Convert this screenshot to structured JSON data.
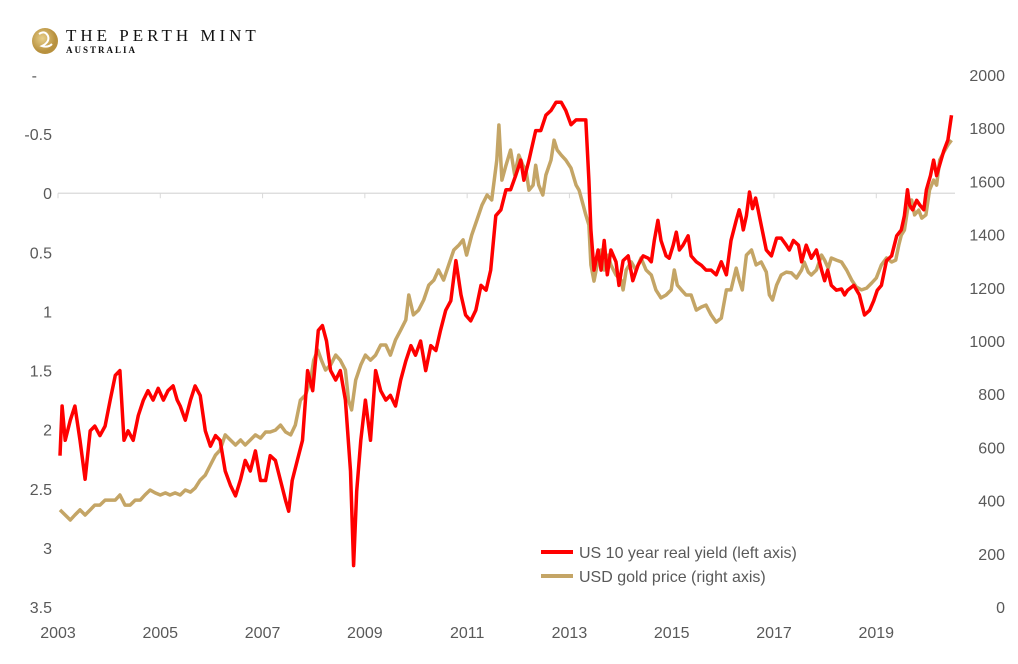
{
  "logo": {
    "name": "THE PERTH MINT",
    "sub": "AUSTRALIA"
  },
  "colors": {
    "yield": "#ff0000",
    "gold": "#c4a566",
    "grid": "#d9d9d9",
    "text": "#595959"
  },
  "chart_data": {
    "type": "line",
    "title": "",
    "x_ticks": [
      "2003",
      "2005",
      "2007",
      "2009",
      "2011",
      "2013",
      "2015",
      "2017",
      "2019"
    ],
    "xlim": [
      2003,
      2020.5
    ],
    "left_axis": {
      "ticks": [
        "-",
        "-0.5",
        "0",
        "0.5",
        "1",
        "1.5",
        "2",
        "2.5",
        "3",
        "3.5"
      ],
      "tick_values": [
        -1,
        -0.5,
        0,
        0.5,
        1,
        1.5,
        2,
        2.5,
        3,
        3.5
      ],
      "range": [
        -1,
        3.5
      ],
      "inverted": true
    },
    "right_axis": {
      "ticks": [
        "2000",
        "1800",
        "1600",
        "1400",
        "1200",
        "1000",
        "800",
        "600",
        "400",
        "200",
        "0"
      ],
      "tick_values": [
        2000,
        1800,
        1600,
        1400,
        1200,
        1000,
        800,
        600,
        400,
        200,
        0
      ],
      "range": [
        0,
        2000
      ]
    },
    "gridlines": "zero line only",
    "legend_position": "bottom-right",
    "series": [
      {
        "name": "US 10 year real yield (left axis)",
        "axis": "left",
        "color": "#ff0000",
        "x": [
          2003.04,
          2003.08,
          2003.14,
          2003.24,
          2003.33,
          2003.43,
          2003.53,
          2003.63,
          2003.72,
          2003.82,
          2003.92,
          2004.02,
          2004.12,
          2004.21,
          2004.29,
          2004.37,
          2004.47,
          2004.57,
          2004.67,
          2004.76,
          2004.86,
          2004.96,
          2005.06,
          2005.15,
          2005.25,
          2005.33,
          2005.39,
          2005.49,
          2005.59,
          2005.68,
          2005.78,
          2005.88,
          2005.98,
          2006.08,
          2006.17,
          2006.27,
          2006.37,
          2006.47,
          2006.57,
          2006.66,
          2006.76,
          2006.86,
          2006.96,
          2007.06,
          2007.15,
          2007.25,
          2007.35,
          2007.45,
          2007.51,
          2007.58,
          2007.68,
          2007.78,
          2007.88,
          2007.98,
          2008.09,
          2008.17,
          2008.25,
          2008.33,
          2008.43,
          2008.52,
          2008.62,
          2008.72,
          2008.78,
          2008.84,
          2008.92,
          2009.01,
          2009.11,
          2009.21,
          2009.31,
          2009.41,
          2009.5,
          2009.6,
          2009.7,
          2009.8,
          2009.9,
          2009.99,
          2010.09,
          2010.19,
          2010.29,
          2010.39,
          2010.48,
          2010.58,
          2010.68,
          2010.78,
          2010.88,
          2010.97,
          2011.07,
          2011.17,
          2011.27,
          2011.37,
          2011.46,
          2011.56,
          2011.66,
          2011.76,
          2011.85,
          2011.95,
          2012.05,
          2012.11,
          2012.21,
          2012.25,
          2012.34,
          2012.44,
          2012.54,
          2012.64,
          2012.74,
          2012.84,
          2012.93,
          2013.03,
          2013.13,
          2013.23,
          2013.32,
          2013.38,
          2013.42,
          2013.48,
          2013.56,
          2013.62,
          2013.68,
          2013.74,
          2013.81,
          2013.91,
          2013.97,
          2014.05,
          2014.15,
          2014.24,
          2014.34,
          2014.44,
          2014.54,
          2014.6,
          2014.66,
          2014.73,
          2014.79,
          2014.89,
          2014.95,
          2015.03,
          2015.09,
          2015.15,
          2015.22,
          2015.32,
          2015.38,
          2015.48,
          2015.58,
          2015.67,
          2015.77,
          2015.87,
          2015.97,
          2016.07,
          2016.16,
          2016.26,
          2016.32,
          2016.36,
          2016.4,
          2016.46,
          2016.52,
          2016.58,
          2016.64,
          2016.69,
          2016.75,
          2016.85,
          2016.95,
          2017.05,
          2017.14,
          2017.24,
          2017.3,
          2017.38,
          2017.48,
          2017.54,
          2017.63,
          2017.73,
          2017.83,
          2017.93,
          2017.99,
          2018.05,
          2018.12,
          2018.22,
          2018.32,
          2018.38,
          2018.44,
          2018.56,
          2018.67,
          2018.77,
          2018.87,
          2018.95,
          2019.02,
          2019.1,
          2019.2,
          2019.3,
          2019.4,
          2019.49,
          2019.55,
          2019.61,
          2019.65,
          2019.71,
          2019.79,
          2019.85,
          2019.93,
          2019.98,
          2020.06,
          2020.12,
          2020.18,
          2020.24,
          2020.32,
          2020.4,
          2020.47
        ],
        "y": [
          2.22,
          1.8,
          2.09,
          1.92,
          1.8,
          2.09,
          2.42,
          2.01,
          1.97,
          2.05,
          1.97,
          1.75,
          1.54,
          1.5,
          2.09,
          2.01,
          2.09,
          1.88,
          1.75,
          1.67,
          1.75,
          1.65,
          1.75,
          1.67,
          1.63,
          1.75,
          1.8,
          1.92,
          1.75,
          1.63,
          1.71,
          2.01,
          2.14,
          2.05,
          2.09,
          2.35,
          2.47,
          2.56,
          2.42,
          2.26,
          2.35,
          2.18,
          2.43,
          2.43,
          2.22,
          2.26,
          2.43,
          2.6,
          2.69,
          2.43,
          2.26,
          2.09,
          1.5,
          1.67,
          1.16,
          1.12,
          1.25,
          1.5,
          1.58,
          1.5,
          1.75,
          2.35,
          3.15,
          2.52,
          2.09,
          1.75,
          2.09,
          1.5,
          1.67,
          1.75,
          1.71,
          1.8,
          1.58,
          1.42,
          1.29,
          1.37,
          1.25,
          1.5,
          1.29,
          1.33,
          1.16,
          0.99,
          0.91,
          0.57,
          0.86,
          1.03,
          1.08,
          0.99,
          0.78,
          0.82,
          0.65,
          0.19,
          0.14,
          -0.03,
          -0.03,
          -0.15,
          -0.28,
          -0.11,
          -0.28,
          -0.36,
          -0.53,
          -0.53,
          -0.66,
          -0.7,
          -0.77,
          -0.77,
          -0.7,
          -0.58,
          -0.62,
          -0.62,
          -0.62,
          -0.11,
          0.31,
          0.65,
          0.48,
          0.65,
          0.4,
          0.69,
          0.48,
          0.58,
          0.78,
          0.57,
          0.53,
          0.74,
          0.61,
          0.53,
          0.55,
          0.58,
          0.4,
          0.23,
          0.4,
          0.53,
          0.55,
          0.44,
          0.33,
          0.48,
          0.44,
          0.36,
          0.53,
          0.58,
          0.61,
          0.65,
          0.65,
          0.69,
          0.58,
          0.69,
          0.4,
          0.23,
          0.14,
          0.21,
          0.31,
          0.19,
          -0.01,
          0.13,
          0.04,
          0.14,
          0.27,
          0.48,
          0.53,
          0.38,
          0.38,
          0.44,
          0.48,
          0.4,
          0.44,
          0.58,
          0.44,
          0.55,
          0.48,
          0.65,
          0.74,
          0.65,
          0.78,
          0.82,
          0.81,
          0.86,
          0.82,
          0.78,
          0.86,
          1.03,
          0.99,
          0.91,
          0.82,
          0.78,
          0.57,
          0.53,
          0.36,
          0.31,
          0.19,
          -0.03,
          0.1,
          0.14,
          0.06,
          0.1,
          0.14,
          -0.03,
          -0.15,
          -0.28,
          -0.15,
          -0.24,
          -0.36,
          -0.45,
          -0.66
        ]
      },
      {
        "name": "USD gold price (right axis)",
        "axis": "right",
        "color": "#c4a566",
        "x": [
          2003.04,
          2003.14,
          2003.24,
          2003.33,
          2003.43,
          2003.53,
          2003.63,
          2003.72,
          2003.82,
          2003.92,
          2004.02,
          2004.12,
          2004.21,
          2004.31,
          2004.41,
          2004.51,
          2004.61,
          2004.7,
          2004.8,
          2004.9,
          2005.0,
          2005.1,
          2005.19,
          2005.29,
          2005.39,
          2005.49,
          2005.59,
          2005.68,
          2005.78,
          2005.88,
          2005.98,
          2006.08,
          2006.17,
          2006.27,
          2006.37,
          2006.47,
          2006.57,
          2006.66,
          2006.76,
          2006.86,
          2006.96,
          2007.06,
          2007.15,
          2007.25,
          2007.35,
          2007.45,
          2007.55,
          2007.64,
          2007.74,
          2007.84,
          2007.94,
          2008.0,
          2008.08,
          2008.15,
          2008.23,
          2008.33,
          2008.43,
          2008.52,
          2008.62,
          2008.68,
          2008.74,
          2008.82,
          2008.92,
          2009.01,
          2009.11,
          2009.21,
          2009.31,
          2009.41,
          2009.5,
          2009.6,
          2009.7,
          2009.8,
          2009.86,
          2009.95,
          2010.05,
          2010.15,
          2010.25,
          2010.35,
          2010.44,
          2010.54,
          2010.64,
          2010.74,
          2010.84,
          2010.92,
          2010.99,
          2011.09,
          2011.19,
          2011.29,
          2011.39,
          2011.48,
          2011.58,
          2011.62,
          2011.68,
          2011.76,
          2011.85,
          2011.93,
          2012.01,
          2012.09,
          2012.15,
          2012.21,
          2012.29,
          2012.34,
          2012.4,
          2012.48,
          2012.54,
          2012.64,
          2012.7,
          2012.76,
          2012.84,
          2012.93,
          2013.03,
          2013.13,
          2013.19,
          2013.27,
          2013.32,
          2013.38,
          2013.42,
          2013.48,
          2013.56,
          2013.62,
          2013.68,
          2013.76,
          2013.81,
          2013.91,
          2014.01,
          2014.05,
          2014.11,
          2014.21,
          2014.3,
          2014.4,
          2014.5,
          2014.6,
          2014.69,
          2014.79,
          2014.89,
          2014.99,
          2015.05,
          2015.11,
          2015.19,
          2015.28,
          2015.38,
          2015.48,
          2015.58,
          2015.67,
          2015.77,
          2015.87,
          2015.97,
          2016.07,
          2016.16,
          2016.26,
          2016.32,
          2016.38,
          2016.46,
          2016.56,
          2016.65,
          2016.75,
          2016.85,
          2016.91,
          2016.97,
          2017.05,
          2017.14,
          2017.24,
          2017.34,
          2017.44,
          2017.54,
          2017.59,
          2017.67,
          2017.73,
          2017.83,
          2017.93,
          2017.99,
          2018.06,
          2018.12,
          2018.22,
          2018.32,
          2018.42,
          2018.52,
          2018.61,
          2018.71,
          2018.81,
          2018.91,
          2019.0,
          2019.1,
          2019.2,
          2019.3,
          2019.38,
          2019.44,
          2019.49,
          2019.55,
          2019.61,
          2019.69,
          2019.75,
          2019.83,
          2019.89,
          2019.97,
          2020.04,
          2020.12,
          2020.18,
          2020.24,
          2020.32,
          2020.4,
          2020.47
        ],
        "y": [
          365,
          346,
          327,
          346,
          365,
          346,
          365,
          383,
          383,
          402,
          402,
          402,
          421,
          383,
          383,
          402,
          402,
          421,
          440,
          429,
          421,
          429,
          421,
          429,
          421,
          440,
          432,
          447,
          477,
          496,
          534,
          571,
          590,
          647,
          628,
          609,
          628,
          609,
          628,
          647,
          635,
          658,
          658,
          665,
          684,
          658,
          647,
          684,
          778,
          797,
          853,
          928,
          966,
          928,
          891,
          910,
          947,
          928,
          891,
          778,
          741,
          853,
          910,
          947,
          928,
          947,
          985,
          985,
          947,
          1004,
          1041,
          1079,
          1173,
          1098,
          1116,
          1154,
          1210,
          1229,
          1267,
          1229,
          1286,
          1342,
          1361,
          1380,
          1323,
          1398,
          1455,
          1511,
          1549,
          1530,
          1680,
          1812,
          1605,
          1661,
          1718,
          1624,
          1699,
          1661,
          1643,
          1567,
          1586,
          1661,
          1586,
          1549,
          1624,
          1680,
          1755,
          1718,
          1699,
          1680,
          1650,
          1586,
          1567,
          1511,
          1474,
          1436,
          1286,
          1225,
          1304,
          1342,
          1267,
          1323,
          1286,
          1248,
          1229,
          1192,
          1267,
          1297,
          1267,
          1312,
          1267,
          1248,
          1192,
          1162,
          1173,
          1192,
          1267,
          1210,
          1192,
          1173,
          1173,
          1116,
          1128,
          1135,
          1098,
          1071,
          1086,
          1192,
          1192,
          1274,
          1229,
          1192,
          1323,
          1342,
          1286,
          1297,
          1259,
          1173,
          1154,
          1210,
          1248,
          1259,
          1256,
          1237,
          1267,
          1297,
          1259,
          1248,
          1267,
          1323,
          1304,
          1274,
          1312,
          1304,
          1297,
          1267,
          1229,
          1203,
          1192,
          1199,
          1218,
          1237,
          1286,
          1312,
          1297,
          1304,
          1361,
          1398,
          1417,
          1492,
          1530,
          1474,
          1492,
          1462,
          1474,
          1567,
          1605,
          1586,
          1680,
          1710,
          1737,
          1755
        ]
      }
    ]
  }
}
